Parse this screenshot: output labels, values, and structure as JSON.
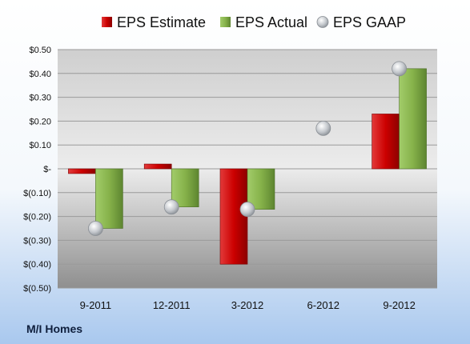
{
  "chart_data": {
    "type": "bar",
    "categories": [
      "9-2011",
      "12-2011",
      "3-2012",
      "6-2012",
      "9-2012"
    ],
    "series": [
      {
        "name": "EPS Estimate",
        "kind": "bar",
        "color": "#cc0000",
        "values": [
          -0.02,
          0.02,
          -0.4,
          null,
          0.23
        ]
      },
      {
        "name": "EPS Actual",
        "kind": "bar",
        "color": "#77a83a",
        "values": [
          -0.25,
          -0.16,
          -0.17,
          null,
          0.42
        ]
      },
      {
        "name": "EPS GAAP",
        "kind": "scatter",
        "color": "#b0b5bb",
        "values": [
          -0.25,
          -0.16,
          -0.17,
          0.17,
          0.42
        ]
      }
    ],
    "yticks": [
      {
        "value": 0.5,
        "label": "$0.50"
      },
      {
        "value": 0.4,
        "label": "$0.40"
      },
      {
        "value": 0.3,
        "label": "$0.30"
      },
      {
        "value": 0.2,
        "label": "$0.20"
      },
      {
        "value": 0.1,
        "label": "$0.10"
      },
      {
        "value": 0.0,
        "label": "$-"
      },
      {
        "value": -0.1,
        "label": "$(0.10)"
      },
      {
        "value": -0.2,
        "label": "$(0.20)"
      },
      {
        "value": -0.3,
        "label": "$(0.30)"
      },
      {
        "value": -0.4,
        "label": "$(0.40)"
      },
      {
        "value": -0.5,
        "label": "$(0.50)"
      }
    ],
    "ylim": [
      -0.5,
      0.5
    ],
    "grid": true,
    "legend_position": "top",
    "company": "M/I Homes"
  }
}
